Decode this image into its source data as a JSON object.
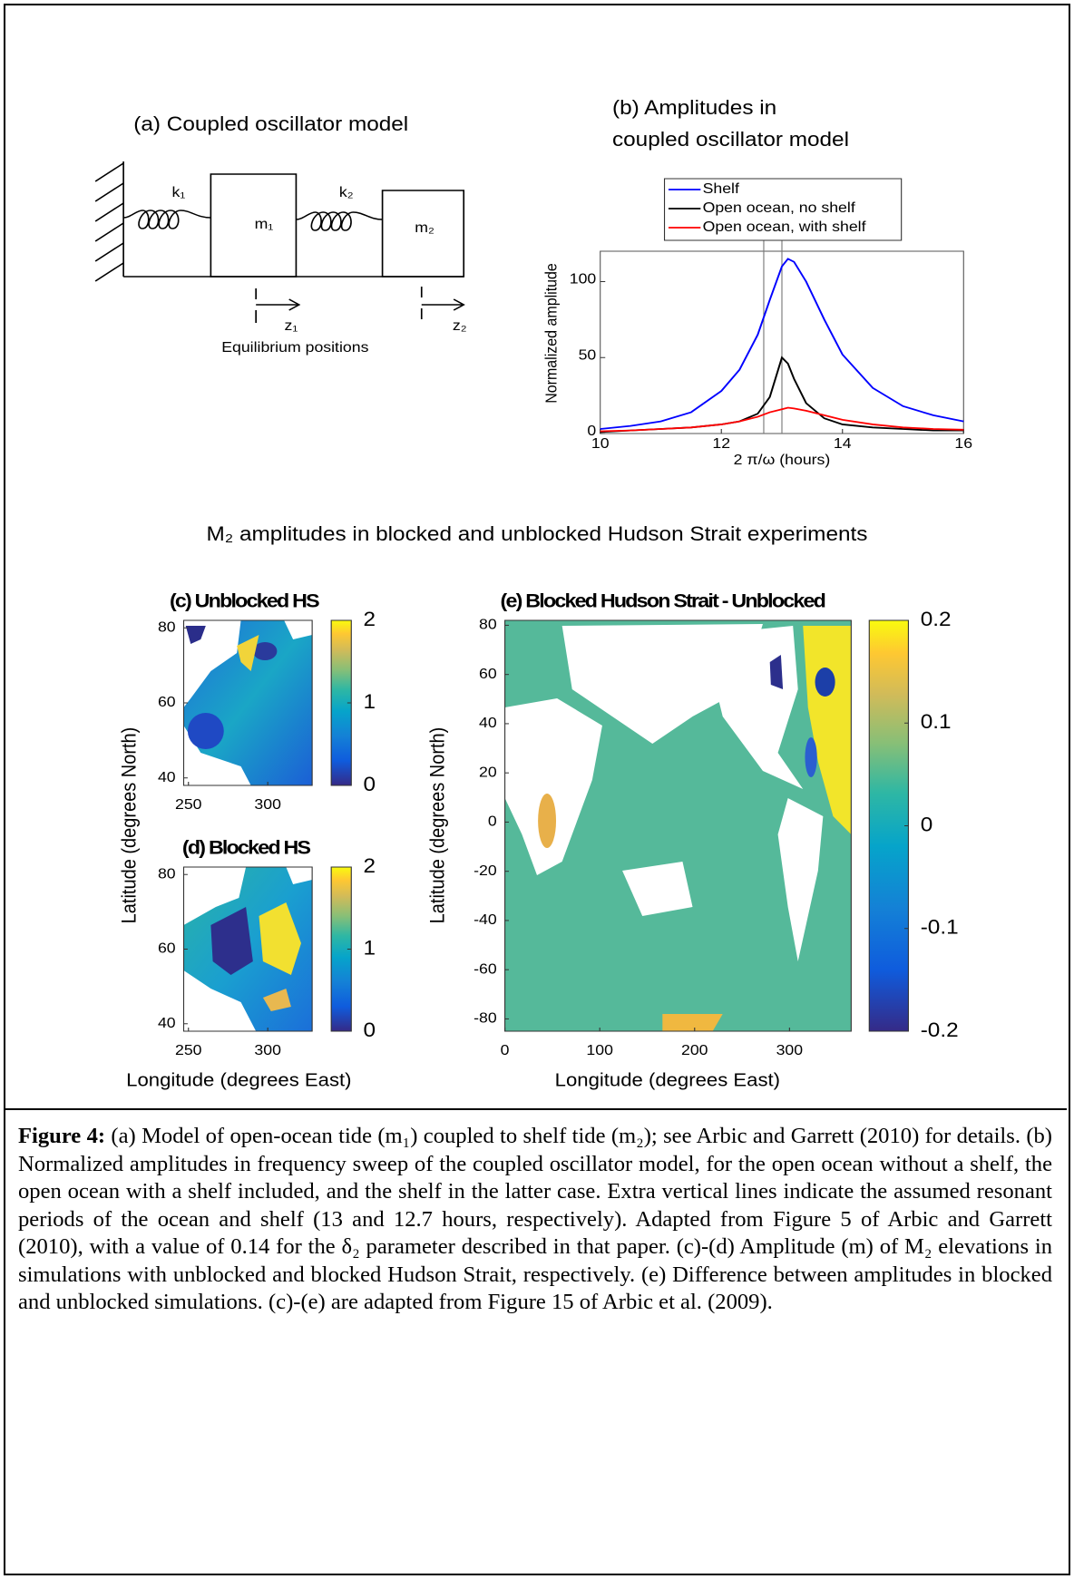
{
  "panel_a": {
    "title": "(a) Coupled oscillator model",
    "k1": "k₁",
    "k2": "k₂",
    "m1": "m₁",
    "m2": "m₂",
    "z1": "z₁",
    "z2": "z₂",
    "caption": "Equilibrium positions"
  },
  "panel_b": {
    "type": "line",
    "title": [
      "(b) Amplitudes in",
      "coupled oscillator model"
    ],
    "xlabel": "2 π/ω (hours)",
    "ylabel": "Normalized amplitude",
    "x": [
      10,
      10.5,
      11,
      11.5,
      12,
      12.3,
      12.6,
      12.8,
      13,
      13.1,
      13.2,
      13.4,
      13.7,
      14,
      14.5,
      15,
      15.5,
      16
    ],
    "series": [
      {
        "name": "Shelf",
        "color": "#0000ff",
        "values": [
          3,
          5,
          8,
          14,
          28,
          42,
          65,
          88,
          110,
          115,
          113,
          100,
          75,
          52,
          30,
          18,
          12,
          8
        ]
      },
      {
        "name": "Open ocean, no shelf",
        "color": "#000000",
        "values": [
          1,
          2,
          3,
          4,
          6,
          8,
          13,
          24,
          50,
          46,
          36,
          20,
          10,
          6,
          4,
          3,
          2,
          2
        ]
      },
      {
        "name": "Open ocean, with shelf",
        "color": "#ff0000",
        "values": [
          1.5,
          2,
          3,
          4,
          6,
          8,
          11,
          14,
          16,
          17,
          16.5,
          15,
          12,
          9,
          6,
          4,
          3,
          2.5
        ]
      }
    ],
    "reference_lines": [
      12.7,
      13
    ],
    "xlim": [
      10,
      16
    ],
    "ylim": [
      0,
      120
    ],
    "xticks": [
      10,
      12,
      14,
      16
    ],
    "yticks": [
      0,
      50,
      100
    ],
    "legend": "top"
  },
  "heading": "M₂ amplitudes in blocked and unblocked Hudson Strait experiments",
  "panel_c": {
    "title": "(c) Unblocked HS",
    "xlim": [
      247,
      328
    ],
    "ylim": [
      38,
      82
    ],
    "xticks": [
      250,
      300
    ],
    "yticks": [
      40,
      60,
      80
    ],
    "clim": [
      0,
      2
    ],
    "cticks": [
      0,
      1,
      2
    ]
  },
  "panel_d": {
    "title": "(d) Blocked HS",
    "xlim": [
      247,
      328
    ],
    "ylim": [
      38,
      82
    ],
    "xticks": [
      250,
      300
    ],
    "yticks": [
      40,
      60,
      80
    ],
    "clim": [
      0,
      2
    ],
    "cticks": [
      0,
      1,
      2
    ]
  },
  "panel_cd": {
    "ylabel": "Latitude (degrees North)",
    "xlabel": "Longitude (degrees East)"
  },
  "panel_e": {
    "title": "(e) Blocked Hudson Strait - Unblocked",
    "xlim": [
      0,
      365
    ],
    "ylim": [
      -85,
      82
    ],
    "xticks": [
      0,
      100,
      200,
      300
    ],
    "yticks": [
      -80,
      -60,
      -40,
      -20,
      0,
      20,
      40,
      60,
      80
    ],
    "clim": [
      -0.2,
      0.2
    ],
    "cticks": [
      -0.2,
      -0.1,
      0,
      0.1,
      0.2
    ],
    "ylabel": "Latitude (degrees North)",
    "xlabel": "Longitude (degrees East)"
  },
  "caption": {
    "label": "Figure 4:",
    "text": "(a) Model of open-ocean tide (m₁) coupled to shelf tide (m₂); see Arbic and Garrett (2010) for details. (b) Normalized amplitudes in frequency sweep of the coupled oscillator model, for the open ocean without a shelf, the open ocean with a shelf included, and the shelf in the latter case. Extra vertical lines indicate the assumed resonant periods of the ocean and shelf (13 and  12.7 hours,  respectively). Adapted from Figure 5 of Arbic and Garrett (2010), with a value of 0.14 for the δ₂ parameter described in that paper.  (c)-(d) Amplitude (m) of M₂ elevations in simulations with unblocked and blocked Hudson Strait, respectively.  (e) Difference between amplitudes in blocked and unblocked simulations.  (c)-(e) are adapted from Figure 15 of Arbic et al. (2009)."
  }
}
